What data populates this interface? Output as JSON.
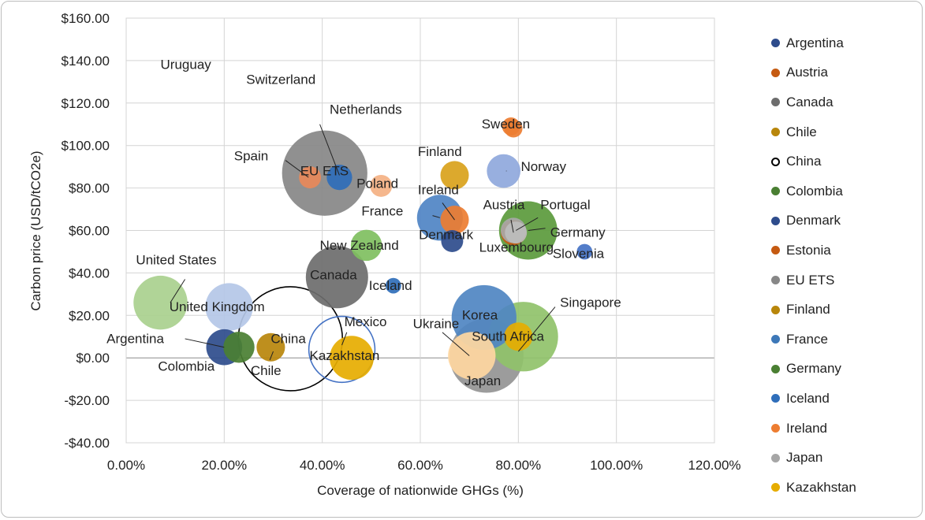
{
  "chart_data": {
    "type": "bubble",
    "title": "",
    "xlabel": "Coverage of nationwide GHGs (%)",
    "ylabel": "Carbon price (USD/tCO2e)",
    "xlim": [
      0,
      1.2
    ],
    "ylim": [
      -40,
      160
    ],
    "x_ticks": [
      0,
      0.2,
      0.4,
      0.6,
      0.8,
      1.0,
      1.2
    ],
    "x_tick_labels": [
      "0.00%",
      "20.00%",
      "40.00%",
      "60.00%",
      "80.00%",
      "100.00%",
      "120.00%"
    ],
    "y_ticks": [
      -40,
      -20,
      0,
      20,
      40,
      60,
      80,
      100,
      120,
      140,
      160
    ],
    "y_tick_labels": [
      "-$40.00",
      "-$20.00",
      "$0.00",
      "$20.00",
      "$40.00",
      "$60.00",
      "$80.00",
      "$100.00",
      "$120.00",
      "$140.00",
      "$160.00"
    ],
    "grid": true,
    "legend_position": "right",
    "series": [
      {
        "name": "Argentina",
        "x": 0.2,
        "y": 5,
        "size": 8,
        "color": "#2e4c8c"
      },
      {
        "name": "Austria",
        "x": 0.79,
        "y": 59,
        "size": 4,
        "color": "#c55a11"
      },
      {
        "name": "Canada",
        "x": 0.43,
        "y": 38,
        "size": 24,
        "color": "#6d6d6d"
      },
      {
        "name": "Chile",
        "x": 0.295,
        "y": 5,
        "size": 5,
        "color": "#b8860b"
      },
      {
        "name": "China",
        "x": 0.335,
        "y": 9,
        "size": 67,
        "color": "#000000",
        "hollow": true
      },
      {
        "name": "Colombia",
        "x": 0.23,
        "y": 5,
        "size": 6,
        "color": "#4a7f32"
      },
      {
        "name": "Denmark",
        "x": 0.665,
        "y": 55,
        "size": 3,
        "color": "#2e4c8c"
      },
      {
        "name": "Estonia",
        "x": 0.79,
        "y": 108,
        "size": 2,
        "color": "#ed7d31"
      },
      {
        "name": "EU ETS",
        "x": 0.405,
        "y": 87,
        "size": 45,
        "color": "#878787"
      },
      {
        "name": "Finland",
        "x": 0.67,
        "y": 86,
        "size": 5,
        "color": "#d9a21b"
      },
      {
        "name": "France",
        "x": 0.64,
        "y": 66,
        "size": 13,
        "color": "#4f84c4"
      },
      {
        "name": "Germany",
        "x": 0.82,
        "y": 60,
        "size": 21,
        "color": "#5b9a3c"
      },
      {
        "name": "Iceland",
        "x": 0.545,
        "y": 34,
        "size": 1.5,
        "color": "#2f6eba"
      },
      {
        "name": "Ireland",
        "x": 0.67,
        "y": 65,
        "size": 5,
        "color": "#ed7d31"
      },
      {
        "name": "Japan",
        "x": 0.735,
        "y": 1,
        "size": 34,
        "color": "#949494"
      },
      {
        "name": "Kazakhstan",
        "x": 0.46,
        "y": 0,
        "size": 12,
        "color": "#e6ac00"
      },
      {
        "name": "Korea",
        "x": 0.73,
        "y": 19,
        "size": 26,
        "color": "#4f86c2"
      },
      {
        "name": "Luxembourg",
        "x": 0.795,
        "y": 59,
        "size": 3,
        "color": "#bdbdbd"
      },
      {
        "name": "Mexico",
        "x": 0.44,
        "y": 4,
        "size": 27,
        "color": "#4472c4",
        "hollow": true
      },
      {
        "name": "Netherlands",
        "x": 0.435,
        "y": 85,
        "size": 4,
        "color": "#2f6eba"
      },
      {
        "name": "New Zealand",
        "x": 0.49,
        "y": 53,
        "size": 6,
        "color": "#7fbf5f"
      },
      {
        "name": "Norway",
        "x": 0.77,
        "y": 88,
        "size": 7,
        "color": "#8fa8dc"
      },
      {
        "name": "Poland",
        "x": 0.52,
        "y": 81,
        "size": 3,
        "color": "#f4b183"
      },
      {
        "name": "Portugal",
        "x": 0.79,
        "y": 60,
        "size": 4,
        "color": "#a8a8a8"
      },
      {
        "name": "Singapore",
        "x": 0.8,
        "y": 10,
        "size": 5,
        "color": "#e6ac00"
      },
      {
        "name": "Slovenia",
        "x": 0.935,
        "y": 50,
        "size": 1.5,
        "color": "#4472c4"
      },
      {
        "name": "South Africa",
        "x": 0.81,
        "y": 10,
        "size": 30,
        "color": "#90c26a"
      },
      {
        "name": "Spain",
        "x": 0.375,
        "y": 85,
        "size": 3,
        "color": "#e8895a"
      },
      {
        "name": "Sweden",
        "x": 0.785,
        "y": 109,
        "size": 2,
        "color": "#ed7d31"
      },
      {
        "name": "Switzerland",
        "x": 0.235,
        "y": 125,
        "size": 1,
        "color": "#ffffff"
      },
      {
        "name": "Ukraine",
        "x": 0.705,
        "y": 1,
        "size": 14,
        "color": "#ffd7a1"
      },
      {
        "name": "United Kingdom",
        "x": 0.21,
        "y": 24,
        "size": 14,
        "color": "#b4c7e7"
      },
      {
        "name": "United States",
        "x": 0.07,
        "y": 26,
        "size": 18,
        "color": "#a9d08e"
      },
      {
        "name": "Uruguay",
        "x": 0.09,
        "y": 137,
        "size": 1,
        "color": "#ffffff"
      }
    ],
    "data_labels": [
      {
        "text": "Uruguay",
        "x": 0.07,
        "y": 136
      },
      {
        "text": "Switzerland",
        "x": 0.245,
        "y": 129
      },
      {
        "text": "Netherlands",
        "x": 0.415,
        "y": 115
      },
      {
        "text": "Sweden",
        "x": 0.725,
        "y": 108
      },
      {
        "text": "Finland",
        "x": 0.595,
        "y": 95
      },
      {
        "text": "Norway",
        "x": 0.805,
        "y": 88
      },
      {
        "text": "Spain",
        "x": 0.22,
        "y": 93
      },
      {
        "text": "EU ETS",
        "x": 0.355,
        "y": 86
      },
      {
        "text": "Poland",
        "x": 0.47,
        "y": 80
      },
      {
        "text": "Ireland",
        "x": 0.595,
        "y": 77
      },
      {
        "text": "Austria",
        "x": 0.728,
        "y": 70
      },
      {
        "text": "Portugal",
        "x": 0.845,
        "y": 70
      },
      {
        "text": "France",
        "x": 0.48,
        "y": 67
      },
      {
        "text": "Germany",
        "x": 0.865,
        "y": 57
      },
      {
        "text": "Denmark",
        "x": 0.597,
        "y": 56
      },
      {
        "text": "Luxembourg",
        "x": 0.72,
        "y": 50
      },
      {
        "text": "New Zealand",
        "x": 0.395,
        "y": 51
      },
      {
        "text": "Slovenia",
        "x": 0.87,
        "y": 47
      },
      {
        "text": "United States",
        "x": 0.02,
        "y": 44
      },
      {
        "text": "Canada",
        "x": 0.375,
        "y": 37
      },
      {
        "text": "Iceland",
        "x": 0.495,
        "y": 32
      },
      {
        "text": "United Kingdom",
        "x": 0.088,
        "y": 22
      },
      {
        "text": "Singapore",
        "x": 0.885,
        "y": 24
      },
      {
        "text": "Mexico",
        "x": 0.445,
        "y": 15
      },
      {
        "text": "Ukraine",
        "x": 0.585,
        "y": 14
      },
      {
        "text": "Korea",
        "x": 0.685,
        "y": 18
      },
      {
        "text": "South Africa",
        "x": 0.705,
        "y": 8
      },
      {
        "text": "Argentina",
        "x": -0.04,
        "y": 7
      },
      {
        "text": "China",
        "x": 0.295,
        "y": 7
      },
      {
        "text": "Kazakhstan",
        "x": 0.374,
        "y": -1
      },
      {
        "text": "Colombia",
        "x": 0.065,
        "y": -6
      },
      {
        "text": "Chile",
        "x": 0.254,
        "y": -8
      },
      {
        "text": "Japan",
        "x": 0.69,
        "y": -13
      }
    ],
    "leader_lines": [
      {
        "from": [
          0.395,
          110
        ],
        "to": [
          0.435,
          86
        ]
      },
      {
        "from": [
          0.325,
          93
        ],
        "to": [
          0.372,
          85
        ]
      },
      {
        "from": [
          0.776,
          88
        ],
        "to": [
          0.775,
          88
        ]
      },
      {
        "from": [
          0.625,
          67
        ],
        "to": [
          0.64,
          66
        ]
      },
      {
        "from": [
          0.645,
          73
        ],
        "to": [
          0.67,
          65
        ]
      },
      {
        "from": [
          0.785,
          65
        ],
        "to": [
          0.79,
          59
        ]
      },
      {
        "from": [
          0.84,
          66
        ],
        "to": [
          0.795,
          60
        ]
      },
      {
        "from": [
          0.855,
          61
        ],
        "to": [
          0.82,
          60
        ]
      },
      {
        "from": [
          0.12,
          37
        ],
        "to": [
          0.09,
          26
        ]
      },
      {
        "from": [
          0.12,
          9
        ],
        "to": [
          0.2,
          5
        ]
      },
      {
        "from": [
          0.3,
          3
        ],
        "to": [
          0.293,
          -1
        ]
      },
      {
        "from": [
          0.45,
          12
        ],
        "to": [
          0.44,
          6
        ]
      },
      {
        "from": [
          0.645,
          12
        ],
        "to": [
          0.7,
          1
        ]
      },
      {
        "from": [
          0.875,
          24
        ],
        "to": [
          0.8,
          3
        ]
      }
    ]
  },
  "legend": {
    "items": [
      {
        "label": "Argentina",
        "color": "#2e4c8c"
      },
      {
        "label": "Austria",
        "color": "#c55a11"
      },
      {
        "label": "Canada",
        "color": "#6d6d6d"
      },
      {
        "label": "Chile",
        "color": "#b8860b"
      },
      {
        "label": "China",
        "color": "#000000",
        "hollow": true
      },
      {
        "label": "Colombia",
        "color": "#4a7f32"
      },
      {
        "label": "Denmark",
        "color": "#2e4c8c"
      },
      {
        "label": "Estonia",
        "color": "#c55a11"
      },
      {
        "label": "EU ETS",
        "color": "#878787"
      },
      {
        "label": "Finland",
        "color": "#b8860b"
      },
      {
        "label": "France",
        "color": "#3d78b8"
      },
      {
        "label": "Germany",
        "color": "#4a7f32"
      },
      {
        "label": "Iceland",
        "color": "#2f6eba"
      },
      {
        "label": "Ireland",
        "color": "#ed7d31"
      },
      {
        "label": "Japan",
        "color": "#a6a6a6"
      },
      {
        "label": "Kazakhstan",
        "color": "#e6ac00"
      }
    ]
  }
}
